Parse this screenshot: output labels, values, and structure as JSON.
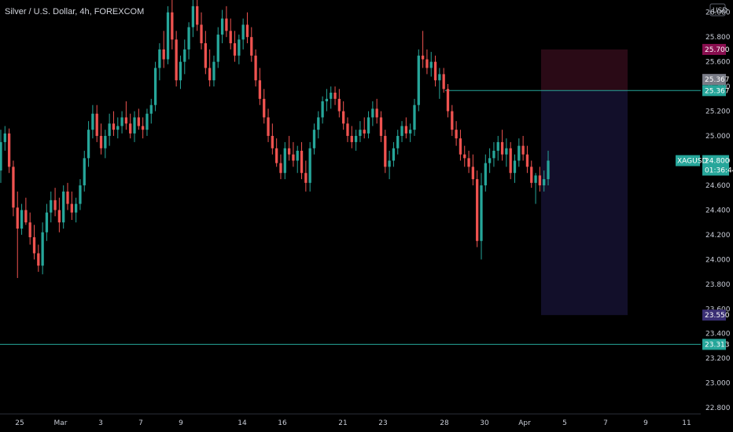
{
  "chart_data": {
    "type": "candlestick",
    "title": "Silver / U.S. Dollar, 4h, FOREXCOM",
    "currency": "USD",
    "symbol": "XAGUSD",
    "last_price": "24.800",
    "countdown": "01:36:44",
    "ylim": [
      22.75,
      26.1
    ],
    "y_ticks": [
      "26.000",
      "25.800",
      "25.600",
      "25.400",
      "25.200",
      "25.000",
      "24.800",
      "24.600",
      "24.400",
      "24.200",
      "24.000",
      "23.800",
      "23.600",
      "23.400",
      "23.200",
      "23.000",
      "22.800"
    ],
    "x_ticks": [
      "25",
      "Mar",
      "3",
      "7",
      "9",
      "14",
      "16",
      "21",
      "23",
      "28",
      "30",
      "Apr",
      "5",
      "7",
      "9",
      "11"
    ],
    "horizontal_lines": [
      {
        "price": 25.367,
        "label": "25.367",
        "color": "#26a69a"
      },
      {
        "price": 23.313,
        "label": "23.313",
        "color": "#26a69a"
      }
    ],
    "position_box": {
      "type": "short",
      "stop": 25.7,
      "entry": 25.367,
      "target": 23.55,
      "stop_label": "25.700",
      "entry_label": "25.367",
      "target_label": "23.550"
    },
    "colors": {
      "up": "#26a69a",
      "down": "#ef5350",
      "background": "#000000"
    },
    "candles": [
      [
        24.72,
        25.05,
        24.62,
        24.95
      ],
      [
        24.95,
        25.08,
        24.88,
        25.02
      ],
      [
        25.02,
        25.06,
        24.7,
        24.75
      ],
      [
        24.75,
        24.8,
        24.35,
        24.42
      ],
      [
        24.42,
        24.55,
        23.85,
        24.25
      ],
      [
        24.25,
        24.45,
        24.2,
        24.4
      ],
      [
        24.4,
        24.5,
        24.28,
        24.3
      ],
      [
        24.3,
        24.38,
        24.12,
        24.18
      ],
      [
        24.18,
        24.28,
        24.0,
        24.05
      ],
      [
        24.05,
        24.12,
        23.9,
        23.95
      ],
      [
        23.95,
        24.3,
        23.88,
        24.22
      ],
      [
        24.22,
        24.45,
        24.15,
        24.38
      ],
      [
        24.38,
        24.55,
        24.3,
        24.48
      ],
      [
        24.48,
        24.58,
        24.35,
        24.4
      ],
      [
        24.4,
        24.5,
        24.22,
        24.3
      ],
      [
        24.3,
        24.6,
        24.25,
        24.55
      ],
      [
        24.55,
        24.62,
        24.4,
        24.45
      ],
      [
        24.45,
        24.55,
        24.32,
        24.38
      ],
      [
        24.38,
        24.5,
        24.3,
        24.45
      ],
      [
        24.45,
        24.65,
        24.4,
        24.6
      ],
      [
        24.6,
        24.88,
        24.55,
        24.82
      ],
      [
        24.82,
        25.12,
        24.75,
        25.05
      ],
      [
        25.05,
        25.25,
        24.98,
        25.18
      ],
      [
        25.18,
        25.25,
        24.95,
        25.0
      ],
      [
        25.0,
        25.1,
        24.85,
        24.9
      ],
      [
        24.9,
        25.05,
        24.82,
        25.0
      ],
      [
        25.0,
        25.18,
        24.92,
        25.1
      ],
      [
        25.1,
        25.2,
        25.0,
        25.05
      ],
      [
        25.05,
        25.15,
        24.98,
        25.08
      ],
      [
        25.08,
        25.2,
        25.02,
        25.15
      ],
      [
        25.15,
        25.28,
        25.05,
        25.1
      ],
      [
        25.1,
        25.18,
        24.98,
        25.02
      ],
      [
        25.02,
        25.2,
        24.95,
        25.15
      ],
      [
        25.15,
        25.22,
        25.05,
        25.08
      ],
      [
        25.08,
        25.15,
        24.98,
        25.05
      ],
      [
        25.05,
        25.22,
        25.0,
        25.18
      ],
      [
        25.18,
        25.3,
        25.1,
        25.25
      ],
      [
        25.25,
        25.6,
        25.2,
        25.55
      ],
      [
        25.55,
        25.75,
        25.45,
        25.7
      ],
      [
        25.7,
        25.85,
        25.55,
        25.62
      ],
      [
        25.62,
        26.05,
        25.58,
        26.0
      ],
      [
        26.0,
        26.1,
        25.7,
        25.78
      ],
      [
        25.78,
        25.85,
        25.4,
        25.45
      ],
      [
        25.45,
        25.65,
        25.38,
        25.6
      ],
      [
        25.6,
        25.78,
        25.5,
        25.7
      ],
      [
        25.7,
        25.92,
        25.62,
        25.88
      ],
      [
        25.88,
        26.1,
        25.8,
        26.05
      ],
      [
        26.05,
        26.1,
        25.85,
        25.9
      ],
      [
        25.9,
        26.0,
        25.7,
        25.75
      ],
      [
        25.75,
        25.85,
        25.5,
        25.55
      ],
      [
        25.55,
        25.7,
        25.4,
        25.45
      ],
      [
        25.45,
        25.65,
        25.4,
        25.6
      ],
      [
        25.6,
        25.88,
        25.55,
        25.82
      ],
      [
        25.82,
        26.02,
        25.75,
        25.95
      ],
      [
        25.95,
        26.05,
        25.8,
        25.85
      ],
      [
        25.85,
        25.95,
        25.7,
        25.75
      ],
      [
        25.75,
        25.85,
        25.6,
        25.65
      ],
      [
        25.65,
        25.82,
        25.58,
        25.78
      ],
      [
        25.78,
        25.95,
        25.7,
        25.9
      ],
      [
        25.9,
        26.0,
        25.75,
        25.8
      ],
      [
        25.8,
        25.88,
        25.6,
        25.65
      ],
      [
        25.65,
        25.7,
        25.4,
        25.45
      ],
      [
        25.45,
        25.55,
        25.25,
        25.3
      ],
      [
        25.3,
        25.38,
        25.1,
        25.15
      ],
      [
        25.15,
        25.22,
        24.95,
        25.0
      ],
      [
        25.0,
        25.1,
        24.85,
        24.9
      ],
      [
        24.9,
        24.98,
        24.75,
        24.78
      ],
      [
        24.78,
        24.85,
        24.65,
        24.7
      ],
      [
        24.7,
        24.95,
        24.65,
        24.9
      ],
      [
        24.9,
        25.0,
        24.8,
        24.85
      ],
      [
        24.85,
        24.95,
        24.75,
        24.8
      ],
      [
        24.8,
        24.92,
        24.7,
        24.88
      ],
      [
        24.88,
        24.95,
        24.65,
        24.7
      ],
      [
        24.7,
        24.8,
        24.55,
        24.62
      ],
      [
        24.62,
        24.95,
        24.55,
        24.9
      ],
      [
        24.9,
        25.1,
        24.85,
        25.05
      ],
      [
        25.05,
        25.2,
        24.98,
        25.15
      ],
      [
        25.15,
        25.32,
        25.1,
        25.28
      ],
      [
        25.28,
        25.38,
        25.2,
        25.3
      ],
      [
        25.3,
        25.4,
        25.22,
        25.35
      ],
      [
        25.35,
        25.4,
        25.25,
        25.3
      ],
      [
        25.3,
        25.38,
        25.15,
        25.2
      ],
      [
        25.2,
        25.28,
        25.05,
        25.1
      ],
      [
        25.1,
        25.15,
        24.95,
        25.0
      ],
      [
        25.0,
        25.08,
        24.9,
        24.95
      ],
      [
        24.95,
        25.05,
        24.88,
        25.0
      ],
      [
        25.0,
        25.12,
        24.95,
        25.05
      ],
      [
        25.05,
        25.15,
        24.98,
        25.02
      ],
      [
        25.02,
        25.2,
        24.98,
        25.15
      ],
      [
        25.15,
        25.28,
        25.08,
        25.22
      ],
      [
        25.22,
        25.3,
        25.1,
        25.15
      ],
      [
        25.15,
        25.2,
        24.95,
        25.0
      ],
      [
        25.0,
        25.05,
        24.7,
        24.75
      ],
      [
        24.75,
        24.88,
        24.65,
        24.8
      ],
      [
        24.8,
        24.95,
        24.75,
        24.9
      ],
      [
        24.9,
        25.05,
        24.85,
        25.0
      ],
      [
        25.0,
        25.12,
        24.95,
        25.08
      ],
      [
        25.08,
        25.15,
        24.98,
        25.02
      ],
      [
        25.02,
        25.1,
        24.95,
        25.05
      ],
      [
        25.05,
        25.3,
        25.0,
        25.25
      ],
      [
        25.25,
        25.7,
        25.2,
        25.65
      ],
      [
        25.65,
        25.85,
        25.55,
        25.62
      ],
      [
        25.62,
        25.7,
        25.5,
        25.55
      ],
      [
        25.55,
        25.68,
        25.48,
        25.6
      ],
      [
        25.6,
        25.65,
        25.4,
        25.45
      ],
      [
        25.45,
        25.55,
        25.3,
        25.5
      ],
      [
        25.5,
        25.55,
        25.35,
        25.38
      ],
      [
        25.38,
        25.42,
        25.15,
        25.2
      ],
      [
        25.2,
        25.25,
        25.0,
        25.05
      ],
      [
        25.05,
        25.12,
        24.92,
        24.98
      ],
      [
        24.98,
        25.05,
        24.8,
        24.85
      ],
      [
        24.85,
        24.92,
        24.75,
        24.82
      ],
      [
        24.82,
        24.88,
        24.7,
        24.75
      ],
      [
        24.75,
        24.85,
        24.6,
        24.65
      ],
      [
        24.65,
        24.72,
        24.1,
        24.15
      ],
      [
        24.15,
        24.7,
        24.0,
        24.6
      ],
      [
        24.6,
        24.85,
        24.55,
        24.78
      ],
      [
        24.78,
        24.9,
        24.7,
        24.82
      ],
      [
        24.82,
        24.95,
        24.75,
        24.88
      ],
      [
        24.88,
        25.0,
        24.8,
        24.95
      ],
      [
        24.95,
        25.05,
        24.8,
        24.85
      ],
      [
        24.85,
        24.98,
        24.75,
        24.9
      ],
      [
        24.9,
        24.95,
        24.65,
        24.7
      ],
      [
        24.7,
        24.85,
        24.62,
        24.8
      ],
      [
        24.8,
        24.98,
        24.75,
        24.92
      ],
      [
        24.92,
        25.0,
        24.8,
        24.85
      ],
      [
        24.85,
        24.92,
        24.7,
        24.75
      ],
      [
        24.75,
        24.8,
        24.58,
        24.62
      ],
      [
        24.62,
        24.7,
        24.45,
        24.68
      ],
      [
        24.68,
        24.75,
        24.55,
        24.6
      ],
      [
        24.6,
        24.72,
        24.55,
        24.65
      ],
      [
        24.65,
        24.88,
        24.6,
        24.8
      ]
    ]
  }
}
